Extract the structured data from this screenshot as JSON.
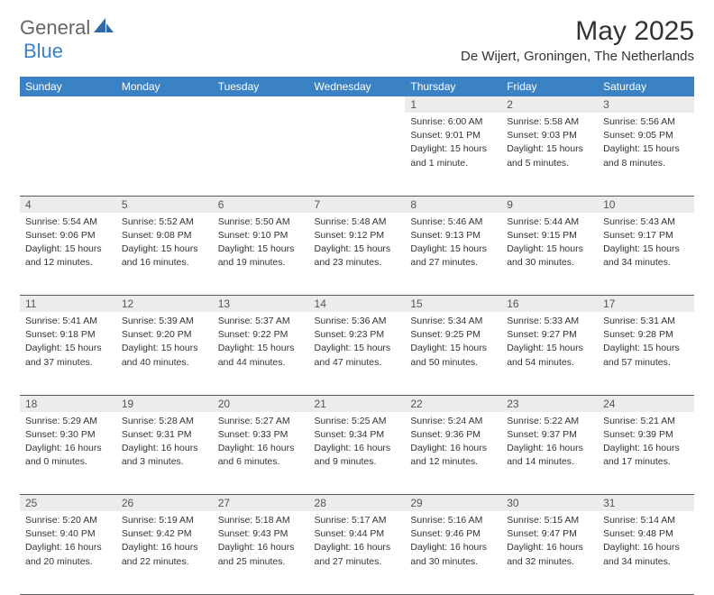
{
  "brand": {
    "general": "General",
    "blue": "Blue"
  },
  "title": "May 2025",
  "location": "De Wijert, Groningen, The Netherlands",
  "style": {
    "header_bg": "#3b82c4",
    "header_fg": "#ffffff",
    "daynum_bg": "#ececec",
    "border_color": "#5a5a5a",
    "text_color": "#333333",
    "logo_gray": "#666666",
    "logo_blue": "#3b82c4",
    "title_fontsize": 30,
    "location_fontsize": 15,
    "body_fontsize": 10.5
  },
  "day_headers": [
    "Sunday",
    "Monday",
    "Tuesday",
    "Wednesday",
    "Thursday",
    "Friday",
    "Saturday"
  ],
  "weeks": [
    [
      {},
      {},
      {},
      {},
      {
        "n": "1",
        "sunrise": "Sunrise: 6:00 AM",
        "sunset": "Sunset: 9:01 PM",
        "day1": "Daylight: 15 hours",
        "day2": "and 1 minute."
      },
      {
        "n": "2",
        "sunrise": "Sunrise: 5:58 AM",
        "sunset": "Sunset: 9:03 PM",
        "day1": "Daylight: 15 hours",
        "day2": "and 5 minutes."
      },
      {
        "n": "3",
        "sunrise": "Sunrise: 5:56 AM",
        "sunset": "Sunset: 9:05 PM",
        "day1": "Daylight: 15 hours",
        "day2": "and 8 minutes."
      }
    ],
    [
      {
        "n": "4",
        "sunrise": "Sunrise: 5:54 AM",
        "sunset": "Sunset: 9:06 PM",
        "day1": "Daylight: 15 hours",
        "day2": "and 12 minutes."
      },
      {
        "n": "5",
        "sunrise": "Sunrise: 5:52 AM",
        "sunset": "Sunset: 9:08 PM",
        "day1": "Daylight: 15 hours",
        "day2": "and 16 minutes."
      },
      {
        "n": "6",
        "sunrise": "Sunrise: 5:50 AM",
        "sunset": "Sunset: 9:10 PM",
        "day1": "Daylight: 15 hours",
        "day2": "and 19 minutes."
      },
      {
        "n": "7",
        "sunrise": "Sunrise: 5:48 AM",
        "sunset": "Sunset: 9:12 PM",
        "day1": "Daylight: 15 hours",
        "day2": "and 23 minutes."
      },
      {
        "n": "8",
        "sunrise": "Sunrise: 5:46 AM",
        "sunset": "Sunset: 9:13 PM",
        "day1": "Daylight: 15 hours",
        "day2": "and 27 minutes."
      },
      {
        "n": "9",
        "sunrise": "Sunrise: 5:44 AM",
        "sunset": "Sunset: 9:15 PM",
        "day1": "Daylight: 15 hours",
        "day2": "and 30 minutes."
      },
      {
        "n": "10",
        "sunrise": "Sunrise: 5:43 AM",
        "sunset": "Sunset: 9:17 PM",
        "day1": "Daylight: 15 hours",
        "day2": "and 34 minutes."
      }
    ],
    [
      {
        "n": "11",
        "sunrise": "Sunrise: 5:41 AM",
        "sunset": "Sunset: 9:18 PM",
        "day1": "Daylight: 15 hours",
        "day2": "and 37 minutes."
      },
      {
        "n": "12",
        "sunrise": "Sunrise: 5:39 AM",
        "sunset": "Sunset: 9:20 PM",
        "day1": "Daylight: 15 hours",
        "day2": "and 40 minutes."
      },
      {
        "n": "13",
        "sunrise": "Sunrise: 5:37 AM",
        "sunset": "Sunset: 9:22 PM",
        "day1": "Daylight: 15 hours",
        "day2": "and 44 minutes."
      },
      {
        "n": "14",
        "sunrise": "Sunrise: 5:36 AM",
        "sunset": "Sunset: 9:23 PM",
        "day1": "Daylight: 15 hours",
        "day2": "and 47 minutes."
      },
      {
        "n": "15",
        "sunrise": "Sunrise: 5:34 AM",
        "sunset": "Sunset: 9:25 PM",
        "day1": "Daylight: 15 hours",
        "day2": "and 50 minutes."
      },
      {
        "n": "16",
        "sunrise": "Sunrise: 5:33 AM",
        "sunset": "Sunset: 9:27 PM",
        "day1": "Daylight: 15 hours",
        "day2": "and 54 minutes."
      },
      {
        "n": "17",
        "sunrise": "Sunrise: 5:31 AM",
        "sunset": "Sunset: 9:28 PM",
        "day1": "Daylight: 15 hours",
        "day2": "and 57 minutes."
      }
    ],
    [
      {
        "n": "18",
        "sunrise": "Sunrise: 5:29 AM",
        "sunset": "Sunset: 9:30 PM",
        "day1": "Daylight: 16 hours",
        "day2": "and 0 minutes."
      },
      {
        "n": "19",
        "sunrise": "Sunrise: 5:28 AM",
        "sunset": "Sunset: 9:31 PM",
        "day1": "Daylight: 16 hours",
        "day2": "and 3 minutes."
      },
      {
        "n": "20",
        "sunrise": "Sunrise: 5:27 AM",
        "sunset": "Sunset: 9:33 PM",
        "day1": "Daylight: 16 hours",
        "day2": "and 6 minutes."
      },
      {
        "n": "21",
        "sunrise": "Sunrise: 5:25 AM",
        "sunset": "Sunset: 9:34 PM",
        "day1": "Daylight: 16 hours",
        "day2": "and 9 minutes."
      },
      {
        "n": "22",
        "sunrise": "Sunrise: 5:24 AM",
        "sunset": "Sunset: 9:36 PM",
        "day1": "Daylight: 16 hours",
        "day2": "and 12 minutes."
      },
      {
        "n": "23",
        "sunrise": "Sunrise: 5:22 AM",
        "sunset": "Sunset: 9:37 PM",
        "day1": "Daylight: 16 hours",
        "day2": "and 14 minutes."
      },
      {
        "n": "24",
        "sunrise": "Sunrise: 5:21 AM",
        "sunset": "Sunset: 9:39 PM",
        "day1": "Daylight: 16 hours",
        "day2": "and 17 minutes."
      }
    ],
    [
      {
        "n": "25",
        "sunrise": "Sunrise: 5:20 AM",
        "sunset": "Sunset: 9:40 PM",
        "day1": "Daylight: 16 hours",
        "day2": "and 20 minutes."
      },
      {
        "n": "26",
        "sunrise": "Sunrise: 5:19 AM",
        "sunset": "Sunset: 9:42 PM",
        "day1": "Daylight: 16 hours",
        "day2": "and 22 minutes."
      },
      {
        "n": "27",
        "sunrise": "Sunrise: 5:18 AM",
        "sunset": "Sunset: 9:43 PM",
        "day1": "Daylight: 16 hours",
        "day2": "and 25 minutes."
      },
      {
        "n": "28",
        "sunrise": "Sunrise: 5:17 AM",
        "sunset": "Sunset: 9:44 PM",
        "day1": "Daylight: 16 hours",
        "day2": "and 27 minutes."
      },
      {
        "n": "29",
        "sunrise": "Sunrise: 5:16 AM",
        "sunset": "Sunset: 9:46 PM",
        "day1": "Daylight: 16 hours",
        "day2": "and 30 minutes."
      },
      {
        "n": "30",
        "sunrise": "Sunrise: 5:15 AM",
        "sunset": "Sunset: 9:47 PM",
        "day1": "Daylight: 16 hours",
        "day2": "and 32 minutes."
      },
      {
        "n": "31",
        "sunrise": "Sunrise: 5:14 AM",
        "sunset": "Sunset: 9:48 PM",
        "day1": "Daylight: 16 hours",
        "day2": "and 34 minutes."
      }
    ]
  ]
}
